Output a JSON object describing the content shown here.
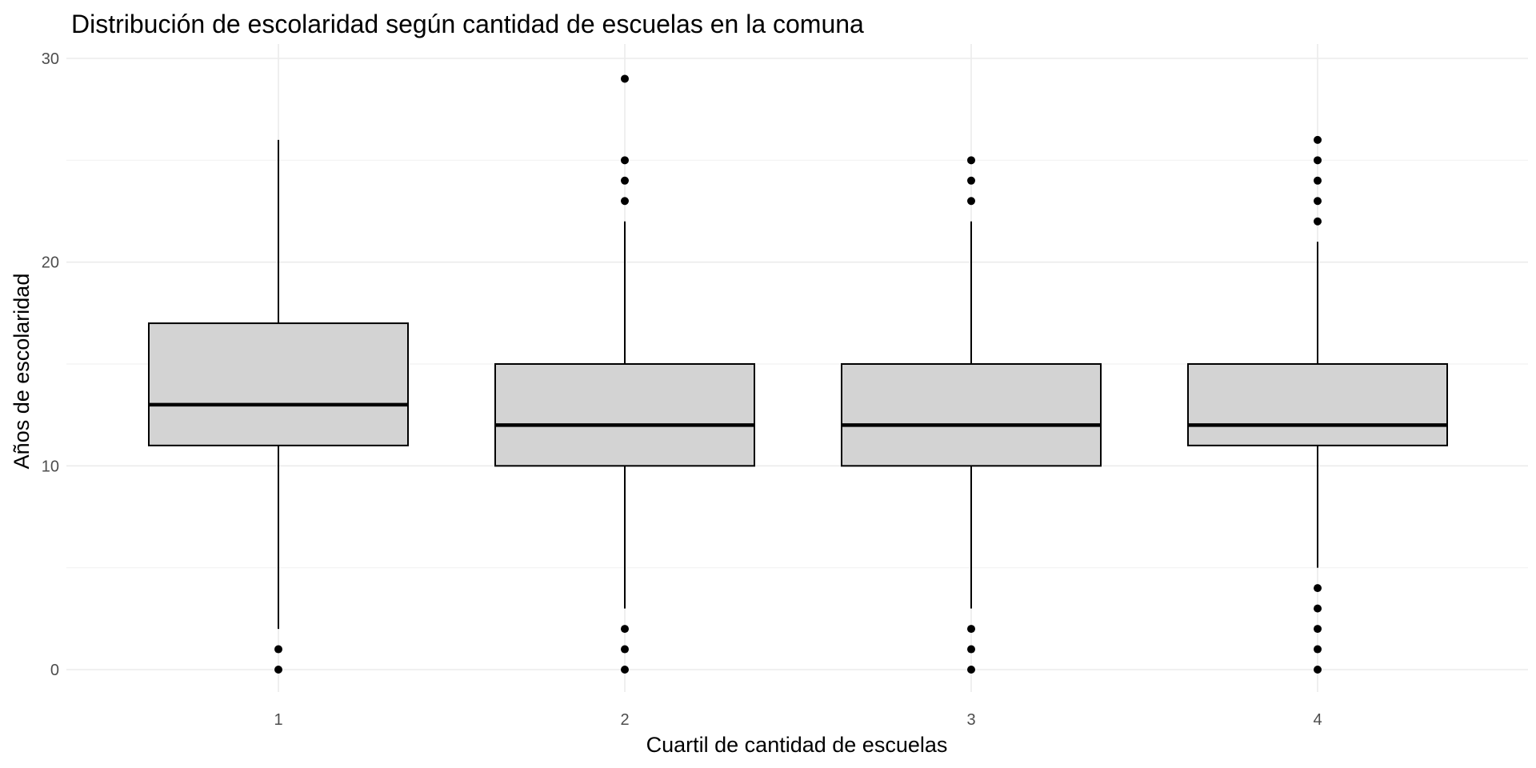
{
  "chart_data": {
    "type": "boxplot",
    "title": "Distribución de escolaridad según cantidad de escuelas en la comuna",
    "xlabel": "Cuartil de cantidad de escuelas",
    "ylabel": "Años de escolaridad",
    "ylim": [
      -1,
      30
    ],
    "yticks": [
      0,
      10,
      20,
      30
    ],
    "ytick_labels": [
      "0",
      "10",
      "20",
      "30"
    ],
    "grid": true,
    "categories": [
      "1",
      "2",
      "3",
      "4"
    ],
    "boxes": [
      {
        "category": "1",
        "whisker_low": 2,
        "q1": 11,
        "median": 13,
        "q3": 17,
        "whisker_high": 26,
        "outliers": [
          0,
          1
        ]
      },
      {
        "category": "2",
        "whisker_low": 3,
        "q1": 10,
        "median": 12,
        "q3": 15,
        "whisker_high": 22,
        "outliers": [
          0,
          1,
          2,
          23,
          24,
          25,
          29
        ]
      },
      {
        "category": "3",
        "whisker_low": 3,
        "q1": 10,
        "median": 12,
        "q3": 15,
        "whisker_high": 22,
        "outliers": [
          0,
          1,
          2,
          23,
          24,
          25
        ]
      },
      {
        "category": "4",
        "whisker_low": 5,
        "q1": 11,
        "median": 12,
        "q3": 15,
        "whisker_high": 21,
        "outliers": [
          0,
          1,
          2,
          3,
          4,
          22,
          23,
          24,
          25,
          26
        ]
      }
    ],
    "colors": {
      "box_fill": "#d3d3d3",
      "box_stroke": "#000000",
      "outlier": "#000000"
    }
  }
}
